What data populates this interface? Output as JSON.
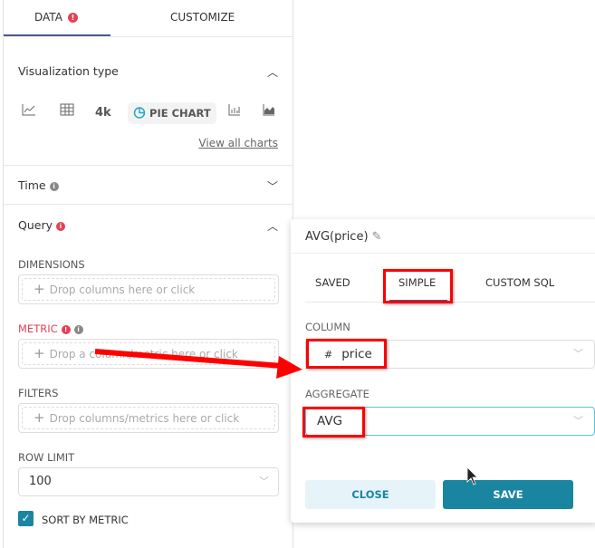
{
  "tabs": {
    "data": "DATA",
    "customize": "CUSTOMIZE",
    "data_error_icon": "!"
  },
  "viz": {
    "title": "Visualization type",
    "items": [
      "line-chart-icon",
      "table-icon",
      "4k",
      "PIE CHART",
      "bar-chart-icon",
      "area-chart-icon"
    ],
    "big_number": "4k",
    "pie_label": "PIE CHART",
    "view_all": "View all charts"
  },
  "time": {
    "title": "Time"
  },
  "query": {
    "title": "Query",
    "dimensions_label": "DIMENSIONS",
    "dimensions_placeholder": "Drop columns here or click",
    "metric_label": "METRIC",
    "metric_placeholder": "Drop a column/metric here or click",
    "filters_label": "FILTERS",
    "filters_placeholder": "Drop columns/metrics here or click",
    "row_limit_label": "ROW LIMIT",
    "row_limit_value": "100",
    "sort_by_metric_label": "SORT BY METRIC",
    "sort_by_metric_checked": true
  },
  "popover": {
    "title": "AVG(price)",
    "tabs": [
      "SAVED",
      "SIMPLE",
      "CUSTOM SQL"
    ],
    "active_tab": "SIMPLE",
    "column_label": "COLUMN",
    "column_type_icon": "#",
    "column_value": "price",
    "aggregate_label": "AGGREGATE",
    "aggregate_value": "AVG",
    "close": "CLOSE",
    "save": "SAVE"
  },
  "colors": {
    "accent": "#1a85a0",
    "error": "#e04355",
    "annotation": "#ff0000"
  }
}
